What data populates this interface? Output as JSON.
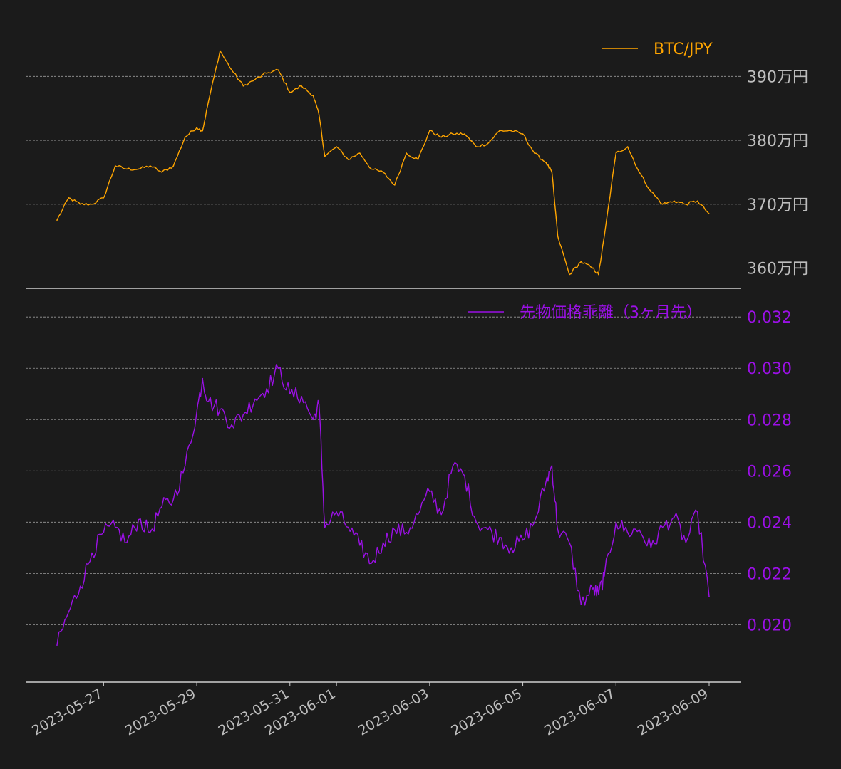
{
  "chart_data": [
    {
      "type": "line",
      "series": [
        {
          "name": "BTC/JPY",
          "color": "#ffa500",
          "x": [
            "2023-05-26 00:00",
            "2023-05-26 06:00",
            "2023-05-26 12:00",
            "2023-05-26 18:00",
            "2023-05-27 00:00",
            "2023-05-27 06:00",
            "2023-05-27 12:00",
            "2023-05-27 18:00",
            "2023-05-28 00:00",
            "2023-05-28 06:00",
            "2023-05-28 12:00",
            "2023-05-28 18:00",
            "2023-05-29 00:00",
            "2023-05-29 03:00",
            "2023-05-29 06:00",
            "2023-05-29 12:00",
            "2023-05-29 18:00",
            "2023-05-30 00:00",
            "2023-05-30 06:00",
            "2023-05-30 12:00",
            "2023-05-30 18:00",
            "2023-05-31 00:00",
            "2023-05-31 06:00",
            "2023-05-31 12:00",
            "2023-05-31 15:00",
            "2023-05-31 18:00",
            "2023-06-01 00:00",
            "2023-06-01 06:00",
            "2023-06-01 12:00",
            "2023-06-01 18:00",
            "2023-06-02 00:00",
            "2023-06-02 06:00",
            "2023-06-02 12:00",
            "2023-06-02 18:00",
            "2023-06-03 00:00",
            "2023-06-03 06:00",
            "2023-06-03 12:00",
            "2023-06-03 18:00",
            "2023-06-04 00:00",
            "2023-06-04 06:00",
            "2023-06-04 12:00",
            "2023-06-04 18:00",
            "2023-06-05 00:00",
            "2023-06-05 06:00",
            "2023-06-05 12:00",
            "2023-06-05 15:00",
            "2023-06-05 18:00",
            "2023-06-06 00:00",
            "2023-06-06 06:00",
            "2023-06-06 12:00",
            "2023-06-06 15:00",
            "2023-06-06 18:00",
            "2023-06-07 00:00",
            "2023-06-07 06:00",
            "2023-06-07 12:00",
            "2023-06-07 18:00",
            "2023-06-08 00:00",
            "2023-06-08 06:00",
            "2023-06-08 12:00",
            "2023-06-08 18:00",
            "2023-06-09 00:00"
          ],
          "values": [
            3675000,
            3710000,
            3700000,
            3700000,
            3710000,
            3760000,
            3755000,
            3755000,
            3760000,
            3750000,
            3760000,
            3805000,
            3820000,
            3815000,
            3860000,
            3940000,
            3910000,
            3885000,
            3895000,
            3905000,
            3910000,
            3875000,
            3885000,
            3870000,
            3840000,
            3775000,
            3790000,
            3770000,
            3780000,
            3755000,
            3750000,
            3730000,
            3780000,
            3770000,
            3815000,
            3805000,
            3810000,
            3810000,
            3790000,
            3795000,
            3815000,
            3815000,
            3810000,
            3780000,
            3765000,
            3750000,
            3650000,
            3590000,
            3610000,
            3600000,
            3590000,
            3650000,
            3780000,
            3790000,
            3750000,
            3720000,
            3700000,
            3705000,
            3700000,
            3705000,
            3685000
          ]
        }
      ],
      "y_ticks": [
        3600000,
        3700000,
        3800000,
        3900000
      ],
      "y_tick_labels": [
        "360万円",
        "370万円",
        "380万円",
        "390万円"
      ],
      "ylim": [
        3585000,
        3975000
      ],
      "grid": true,
      "legend_position": "top-right"
    },
    {
      "type": "line",
      "series": [
        {
          "name": "先物価格乖離（3ヶ月先）",
          "color": "#9b10e6",
          "x": [
            "2023-05-26 00:00",
            "2023-05-26 06:00",
            "2023-05-26 12:00",
            "2023-05-26 18:00",
            "2023-05-27 00:00",
            "2023-05-27 06:00",
            "2023-05-27 12:00",
            "2023-05-27 18:00",
            "2023-05-28 00:00",
            "2023-05-28 06:00",
            "2023-05-28 12:00",
            "2023-05-28 18:00",
            "2023-05-29 00:00",
            "2023-05-29 03:00",
            "2023-05-29 06:00",
            "2023-05-29 12:00",
            "2023-05-29 18:00",
            "2023-05-30 00:00",
            "2023-05-30 06:00",
            "2023-05-30 12:00",
            "2023-05-30 18:00",
            "2023-05-31 00:00",
            "2023-05-31 06:00",
            "2023-05-31 12:00",
            "2023-05-31 15:00",
            "2023-05-31 18:00",
            "2023-06-01 00:00",
            "2023-06-01 06:00",
            "2023-06-01 12:00",
            "2023-06-01 18:00",
            "2023-06-02 00:00",
            "2023-06-02 06:00",
            "2023-06-02 12:00",
            "2023-06-02 18:00",
            "2023-06-03 00:00",
            "2023-06-03 06:00",
            "2023-06-03 12:00",
            "2023-06-03 18:00",
            "2023-06-04 00:00",
            "2023-06-04 06:00",
            "2023-06-04 12:00",
            "2023-06-04 18:00",
            "2023-06-05 00:00",
            "2023-06-05 06:00",
            "2023-06-05 12:00",
            "2023-06-05 15:00",
            "2023-06-05 18:00",
            "2023-06-06 00:00",
            "2023-06-06 06:00",
            "2023-06-06 12:00",
            "2023-06-06 15:00",
            "2023-06-06 18:00",
            "2023-06-07 00:00",
            "2023-06-07 06:00",
            "2023-06-07 12:00",
            "2023-06-07 18:00",
            "2023-06-08 00:00",
            "2023-06-08 06:00",
            "2023-06-08 12:00",
            "2023-06-08 18:00",
            "2023-06-09 00:00"
          ],
          "values": [
            0.0192,
            0.0205,
            0.0215,
            0.0228,
            0.0236,
            0.0238,
            0.0232,
            0.0241,
            0.0236,
            0.0246,
            0.0249,
            0.0262,
            0.0283,
            0.0296,
            0.0287,
            0.0284,
            0.0278,
            0.0282,
            0.0288,
            0.0292,
            0.03,
            0.029,
            0.0289,
            0.028,
            0.0286,
            0.0238,
            0.0244,
            0.0238,
            0.0231,
            0.0224,
            0.0232,
            0.0237,
            0.0236,
            0.0243,
            0.0252,
            0.0243,
            0.0262,
            0.0258,
            0.024,
            0.0237,
            0.0234,
            0.023,
            0.0233,
            0.024,
            0.0256,
            0.0262,
            0.0237,
            0.0232,
            0.0208,
            0.0214,
            0.0212,
            0.0219,
            0.024,
            0.0236,
            0.0237,
            0.023,
            0.0238,
            0.0242,
            0.0232,
            0.0244,
            0.0211
          ]
        }
      ],
      "y_ticks": [
        0.02,
        0.022,
        0.024,
        0.026,
        0.028,
        0.03,
        0.032
      ],
      "y_tick_labels": [
        "0.020",
        "0.022",
        "0.024",
        "0.026",
        "0.028",
        "0.030",
        "0.032"
      ],
      "ylim": [
        0.0184,
        0.0327
      ],
      "grid": true,
      "legend_position": "top-right"
    }
  ],
  "x_axis": {
    "tick_dates": [
      "2023-05-27",
      "2023-05-29",
      "2023-05-31",
      "2023-06-01",
      "2023-06-03",
      "2023-06-05",
      "2023-06-07",
      "2023-06-09"
    ],
    "tick_labels": [
      "2023-05-27",
      "2023-05-29",
      "2023-05-31",
      "2023-06-01",
      "2023-06-03",
      "2023-06-05",
      "2023-06-07",
      "2023-06-09"
    ],
    "range": [
      "2023-05-26 00:00",
      "2023-06-09 00:00"
    ]
  },
  "colors": {
    "background": "#1b1b1b",
    "grid": "#9a9a9a",
    "spine": "#d0d0d0",
    "tick_text_top": "#bdbdbd"
  }
}
